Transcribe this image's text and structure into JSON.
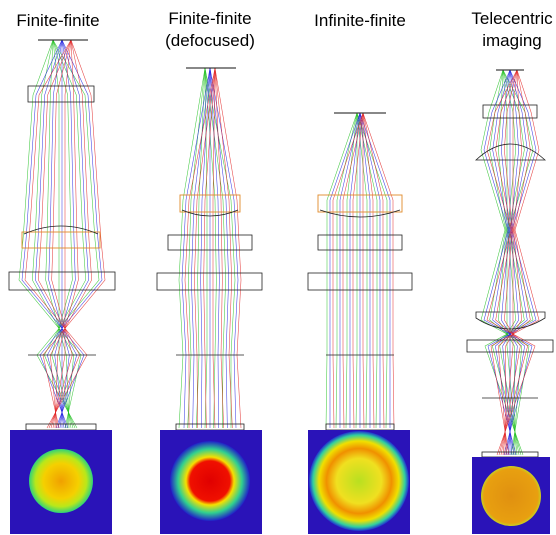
{
  "panels": [
    {
      "title": [
        "Finite-finite"
      ]
    },
    {
      "title": [
        "Finite-finite",
        "(defocused)"
      ]
    },
    {
      "title": [
        "Infinite-finite"
      ]
    },
    {
      "title": [
        "Telecentric",
        "imaging"
      ]
    }
  ]
}
